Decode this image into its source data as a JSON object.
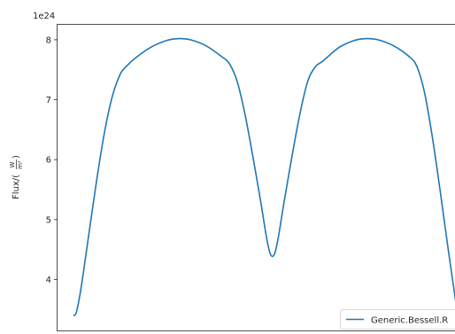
{
  "chart_data": {
    "type": "line",
    "title": "",
    "xlabel": "",
    "ylabel": "Flux/",
    "ylabel_unit": {
      "numerator": "W",
      "denominator": "m²"
    },
    "y_offset_text": "1e24",
    "ylim": [
      3.15,
      8.25
    ],
    "xlim": [
      -0.04,
      1.0
    ],
    "yticks": [
      4,
      5,
      6,
      7,
      8
    ],
    "ytick_labels": [
      "4",
      "5",
      "6",
      "7",
      "8"
    ],
    "xticks_visible": false,
    "grid": false,
    "legend_position": "lower-right",
    "series": [
      {
        "name": "Generic.Bessell.R",
        "color": "#1f77b4",
        "points": [
          [
            0.0,
            3.4
          ],
          [
            0.008,
            3.45
          ],
          [
            0.02,
            3.85
          ],
          [
            0.04,
            4.75
          ],
          [
            0.06,
            5.65
          ],
          [
            0.08,
            6.45
          ],
          [
            0.1,
            7.05
          ],
          [
            0.12,
            7.42
          ],
          [
            0.135,
            7.55
          ],
          [
            0.16,
            7.7
          ],
          [
            0.2,
            7.88
          ],
          [
            0.24,
            7.99
          ],
          [
            0.27,
            8.02
          ],
          [
            0.3,
            8.0
          ],
          [
            0.34,
            7.9
          ],
          [
            0.38,
            7.72
          ],
          [
            0.4,
            7.6
          ],
          [
            0.42,
            7.3
          ],
          [
            0.44,
            6.75
          ],
          [
            0.46,
            6.05
          ],
          [
            0.48,
            5.3
          ],
          [
            0.495,
            4.7
          ],
          [
            0.505,
            4.42
          ],
          [
            0.515,
            4.42
          ],
          [
            0.525,
            4.7
          ],
          [
            0.54,
            5.3
          ],
          [
            0.56,
            6.05
          ],
          [
            0.58,
            6.75
          ],
          [
            0.6,
            7.3
          ],
          [
            0.62,
            7.55
          ],
          [
            0.64,
            7.65
          ],
          [
            0.68,
            7.87
          ],
          [
            0.72,
            7.99
          ],
          [
            0.75,
            8.02
          ],
          [
            0.78,
            8.0
          ],
          [
            0.82,
            7.9
          ],
          [
            0.86,
            7.72
          ],
          [
            0.88,
            7.55
          ],
          [
            0.9,
            7.1
          ],
          [
            0.92,
            6.35
          ],
          [
            0.94,
            5.45
          ],
          [
            0.96,
            4.5
          ],
          [
            0.98,
            3.6
          ],
          [
            0.99,
            3.2
          ]
        ]
      }
    ]
  }
}
